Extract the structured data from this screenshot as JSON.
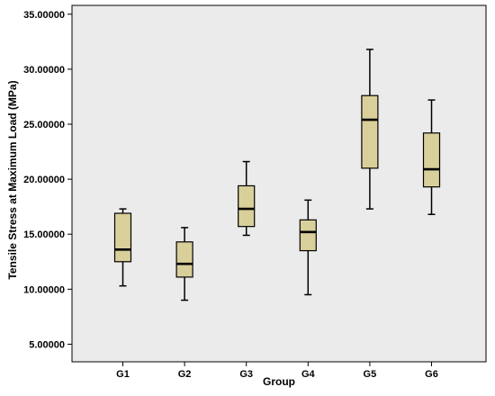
{
  "colors": {
    "plot_background": "#ebebeb",
    "box_fill": "#d9cf9a",
    "stroke": "#000000"
  },
  "chart_data": {
    "type": "boxplot",
    "title": "",
    "xlabel": "Group",
    "ylabel": "Tensile Stress at Maximum Load (MPa)",
    "ylim": [
      3.4,
      35.8
    ],
    "yticks": [
      5,
      10,
      15,
      20,
      25,
      30,
      35
    ],
    "ytick_labels": [
      "5.00000",
      "10.00000",
      "15.00000",
      "20.00000",
      "25.00000",
      "30.00000",
      "35.00000"
    ],
    "categories": [
      "G1",
      "G2",
      "G3",
      "G4",
      "G5",
      "G6"
    ],
    "boxes": [
      {
        "category": "G1",
        "min": 10.3,
        "q1": 12.5,
        "median": 13.6,
        "q3": 16.9,
        "max": 17.3
      },
      {
        "category": "G2",
        "min": 9.0,
        "q1": 11.1,
        "median": 12.3,
        "q3": 14.3,
        "max": 15.6
      },
      {
        "category": "G3",
        "min": 14.9,
        "q1": 15.7,
        "median": 17.3,
        "q3": 19.4,
        "max": 21.6
      },
      {
        "category": "G4",
        "min": 9.5,
        "q1": 13.5,
        "median": 15.2,
        "q3": 16.3,
        "max": 18.1
      },
      {
        "category": "G5",
        "min": 17.3,
        "q1": 21.0,
        "median": 25.4,
        "q3": 27.6,
        "max": 31.8
      },
      {
        "category": "G6",
        "min": 16.8,
        "q1": 19.3,
        "median": 20.9,
        "q3": 24.2,
        "max": 27.2
      }
    ],
    "grid": false,
    "legend": "none"
  }
}
